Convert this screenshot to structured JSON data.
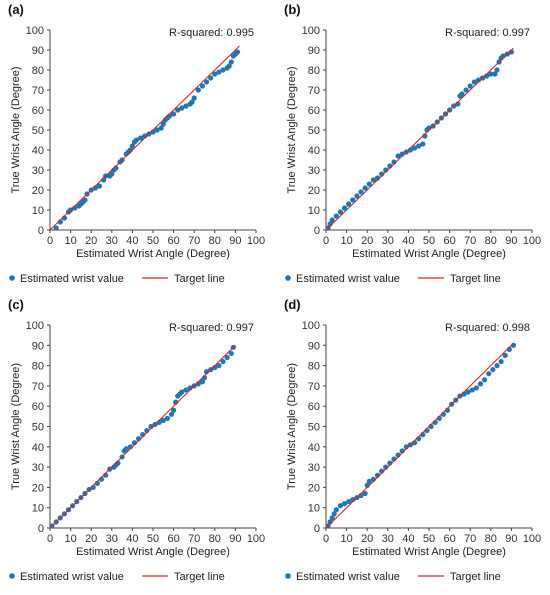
{
  "chart_data": [
    {
      "type": "scatter",
      "panel_label": "(a)",
      "annotation": "R-squared: 0.995",
      "xlabel": "Estimated Wrist Angle (Degree)",
      "ylabel": "True Wrist Angle (Degree)",
      "xlim": [
        0,
        100
      ],
      "ylim": [
        0,
        100
      ],
      "xticks": [
        0,
        10,
        20,
        30,
        40,
        50,
        60,
        70,
        80,
        90,
        100
      ],
      "yticks": [
        0,
        10,
        20,
        30,
        40,
        50,
        60,
        70,
        80,
        90,
        100
      ],
      "grid": false,
      "legend": [
        "Estimated wrist value",
        "Target line"
      ],
      "legend_position": "bottom",
      "series": [
        {
          "name": "Estimated wrist value",
          "color": "#1f77b4",
          "x": [
            3,
            5,
            7,
            9,
            10,
            12,
            14,
            15,
            16,
            17,
            18,
            20,
            22,
            24,
            26,
            27,
            29,
            30,
            31,
            32,
            34,
            35,
            37,
            38,
            39,
            40,
            41,
            42,
            44,
            46,
            48,
            50,
            52,
            54,
            55,
            56,
            57,
            58,
            60,
            62,
            64,
            66,
            68,
            69,
            70,
            72,
            74,
            76,
            78,
            80,
            82,
            84,
            86,
            87,
            88,
            89,
            90,
            91
          ],
          "y": [
            1,
            4,
            6,
            9,
            10,
            11,
            12,
            13,
            14,
            15,
            18,
            20,
            21,
            22,
            25,
            27,
            27,
            28,
            30,
            31,
            34,
            35,
            38,
            39,
            40,
            42,
            44,
            45,
            46,
            47,
            48,
            49,
            50,
            51,
            53,
            55,
            56,
            57,
            58,
            60,
            61,
            62,
            63,
            64,
            66,
            70,
            72,
            74,
            76,
            78,
            79,
            80,
            81,
            82,
            84,
            87,
            88,
            89
          ]
        },
        {
          "name": "Target line",
          "color": "#d62728",
          "x": [
            0,
            92
          ],
          "y": [
            0,
            92
          ]
        }
      ]
    },
    {
      "type": "scatter",
      "panel_label": "(b)",
      "annotation": "R-squared: 0.997",
      "xlabel": "Estimated Wrist Angle (Degree)",
      "ylabel": "True Wrist Angle (Degree)",
      "xlim": [
        0,
        100
      ],
      "ylim": [
        0,
        100
      ],
      "xticks": [
        0,
        10,
        20,
        30,
        40,
        50,
        60,
        70,
        80,
        90,
        100
      ],
      "yticks": [
        0,
        10,
        20,
        30,
        40,
        50,
        60,
        70,
        80,
        90,
        100
      ],
      "grid": false,
      "legend": [
        "Estimated wrist value",
        "Target line"
      ],
      "legend_position": "bottom",
      "series": [
        {
          "name": "Estimated wrist value",
          "color": "#1f77b4",
          "x": [
            1,
            2,
            3,
            5,
            7,
            9,
            11,
            13,
            15,
            17,
            19,
            21,
            23,
            25,
            27,
            29,
            31,
            33,
            35,
            37,
            39,
            41,
            43,
            45,
            47,
            48,
            49,
            50,
            52,
            54,
            56,
            58,
            60,
            62,
            64,
            65,
            66,
            68,
            70,
            72,
            74,
            76,
            78,
            80,
            82,
            83,
            84,
            85,
            86,
            88,
            90
          ],
          "y": [
            1,
            3,
            5,
            7,
            9,
            11,
            13,
            15,
            17,
            19,
            21,
            23,
            25,
            26,
            28,
            30,
            32,
            34,
            37,
            38,
            39,
            40,
            41,
            42,
            43,
            47,
            50,
            51,
            52,
            54,
            56,
            58,
            60,
            62,
            63,
            67,
            68,
            70,
            72,
            74,
            75,
            76,
            77,
            78,
            78,
            80,
            84,
            86,
            87,
            88,
            89
          ]
        },
        {
          "name": "Target line",
          "color": "#d62728",
          "x": [
            0,
            91
          ],
          "y": [
            0,
            91
          ]
        }
      ]
    },
    {
      "type": "scatter",
      "panel_label": "(c)",
      "annotation": "R-squared: 0.997",
      "xlabel": "Estimated Wrist Angle (Degree)",
      "ylabel": "True Wrist Angle (Degree)",
      "xlim": [
        0,
        100
      ],
      "ylim": [
        0,
        100
      ],
      "xticks": [
        0,
        10,
        20,
        30,
        40,
        50,
        60,
        70,
        80,
        90,
        100
      ],
      "yticks": [
        0,
        10,
        20,
        30,
        40,
        50,
        60,
        70,
        80,
        90,
        100
      ],
      "grid": false,
      "legend": [
        "Estimated wrist value",
        "Target line"
      ],
      "legend_position": "bottom",
      "series": [
        {
          "name": "Estimated wrist value",
          "color": "#1f77b4",
          "x": [
            1,
            3,
            5,
            7,
            9,
            11,
            13,
            15,
            17,
            19,
            21,
            23,
            25,
            27,
            29,
            31,
            32,
            33,
            35,
            36,
            37,
            39,
            41,
            43,
            45,
            47,
            49,
            51,
            53,
            55,
            57,
            59,
            60,
            61,
            62,
            63,
            64,
            66,
            68,
            70,
            72,
            74,
            75,
            76,
            78,
            80,
            82,
            84,
            86,
            88,
            89
          ],
          "y": [
            1,
            3,
            5,
            7,
            9,
            11,
            13,
            15,
            17,
            19,
            20,
            22,
            24,
            26,
            29,
            30,
            31,
            32,
            35,
            38,
            39,
            40,
            42,
            44,
            46,
            48,
            50,
            51,
            52,
            53,
            54,
            56,
            58,
            62,
            65,
            66,
            67,
            68,
            69,
            70,
            71,
            72,
            74,
            77,
            78,
            79,
            80,
            82,
            84,
            86,
            89
          ]
        },
        {
          "name": "Target line",
          "color": "#d62728",
          "x": [
            0,
            90
          ],
          "y": [
            0,
            90
          ]
        }
      ]
    },
    {
      "type": "scatter",
      "panel_label": "(d)",
      "annotation": "R-squared: 0.998",
      "xlabel": "Estimated Wrist Angle (Degree)",
      "ylabel": "True Wrist Angle (Degree)",
      "xlim": [
        0,
        100
      ],
      "ylim": [
        0,
        100
      ],
      "xticks": [
        0,
        10,
        20,
        30,
        40,
        50,
        60,
        70,
        80,
        90,
        100
      ],
      "yticks": [
        0,
        10,
        20,
        30,
        40,
        50,
        60,
        70,
        80,
        90,
        100
      ],
      "grid": false,
      "legend": [
        "Estimated wrist value",
        "Target line"
      ],
      "legend_position": "bottom",
      "series": [
        {
          "name": "Estimated wrist value",
          "color": "#1f77b4",
          "x": [
            1,
            2,
            3,
            4,
            5,
            7,
            9,
            11,
            13,
            15,
            17,
            19,
            20,
            21,
            23,
            25,
            27,
            29,
            31,
            33,
            35,
            37,
            39,
            41,
            43,
            45,
            47,
            49,
            51,
            53,
            55,
            57,
            59,
            61,
            63,
            65,
            67,
            69,
            71,
            73,
            75,
            77,
            79,
            81,
            83,
            85,
            87,
            89,
            91
          ],
          "y": [
            1,
            3,
            5,
            7,
            9,
            11,
            12,
            13,
            14,
            15,
            16,
            17,
            21,
            23,
            24,
            26,
            28,
            30,
            32,
            34,
            36,
            38,
            40,
            41,
            42,
            44,
            46,
            48,
            50,
            52,
            54,
            56,
            58,
            61,
            63,
            65,
            66,
            67,
            68,
            69,
            71,
            73,
            76,
            78,
            80,
            82,
            85,
            88,
            90
          ]
        },
        {
          "name": "Target line",
          "color": "#d62728",
          "x": [
            0,
            91
          ],
          "y": [
            0,
            91
          ]
        }
      ]
    }
  ]
}
